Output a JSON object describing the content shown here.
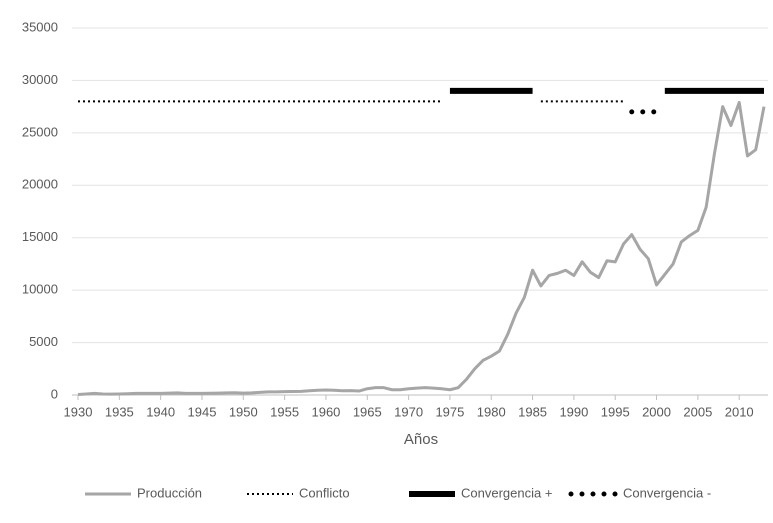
{
  "chart_data": {
    "type": "line",
    "x_label": "Años",
    "x": [
      1930,
      1931,
      1932,
      1933,
      1934,
      1935,
      1936,
      1937,
      1938,
      1939,
      1940,
      1941,
      1942,
      1943,
      1944,
      1945,
      1946,
      1947,
      1948,
      1949,
      1950,
      1951,
      1952,
      1953,
      1954,
      1955,
      1956,
      1957,
      1958,
      1959,
      1960,
      1961,
      1962,
      1963,
      1964,
      1965,
      1966,
      1967,
      1968,
      1969,
      1970,
      1971,
      1972,
      1973,
      1974,
      1975,
      1976,
      1977,
      1978,
      1979,
      1980,
      1981,
      1982,
      1983,
      1984,
      1985,
      1986,
      1987,
      1988,
      1989,
      1990,
      1991,
      1992,
      1993,
      1994,
      1995,
      1996,
      1997,
      1998,
      1999,
      2000,
      2001,
      2002,
      2003,
      2004,
      2005,
      2006,
      2007,
      2008,
      2009,
      2010,
      2011,
      2012,
      2013
    ],
    "series": [
      {
        "name": "Producción",
        "color": "#a6a6a6",
        "style": "solid",
        "values": [
          50,
          100,
          150,
          100,
          80,
          100,
          120,
          150,
          150,
          160,
          150,
          180,
          200,
          150,
          150,
          160,
          170,
          180,
          200,
          220,
          180,
          200,
          250,
          300,
          300,
          320,
          330,
          350,
          400,
          450,
          480,
          450,
          400,
          420,
          380,
          600,
          700,
          700,
          500,
          500,
          600,
          650,
          700,
          650,
          600,
          500,
          700,
          1500,
          2500,
          3300,
          3700,
          4200,
          5800,
          7800,
          9300,
          11900,
          10400,
          11400,
          11600,
          11900,
          11400,
          12700,
          11700,
          11200,
          12800,
          12700,
          14400,
          15300,
          13900,
          13000,
          10500,
          11500,
          12500,
          14600,
          15200,
          15700,
          17900,
          23000,
          27500,
          25700,
          27900,
          22800,
          23400,
          27500
        ]
      },
      {
        "name": "Conflicto",
        "color": "#000000",
        "style": "dotted",
        "level": 28000,
        "segments": [
          [
            1930,
            1974
          ],
          [
            1986,
            1996
          ]
        ]
      },
      {
        "name": "Convergencia +",
        "color": "#000000",
        "style": "thick",
        "level": 29000,
        "segments": [
          [
            1975,
            1985
          ],
          [
            2001,
            2013
          ]
        ]
      },
      {
        "name": "Convergencia -",
        "color": "#000000",
        "style": "dots",
        "level": 27000,
        "segments": [
          [
            1997,
            2000
          ]
        ]
      }
    ],
    "xlim": [
      1930,
      2013
    ],
    "xticks": [
      1930,
      1935,
      1940,
      1945,
      1950,
      1955,
      1960,
      1965,
      1970,
      1975,
      1980,
      1985,
      1990,
      1995,
      2000,
      2005,
      2010
    ],
    "ylim": [
      0,
      35000
    ],
    "yticks": [
      0,
      5000,
      10000,
      15000,
      20000,
      25000,
      30000,
      35000
    ],
    "grid": true,
    "legend": "bottom"
  }
}
